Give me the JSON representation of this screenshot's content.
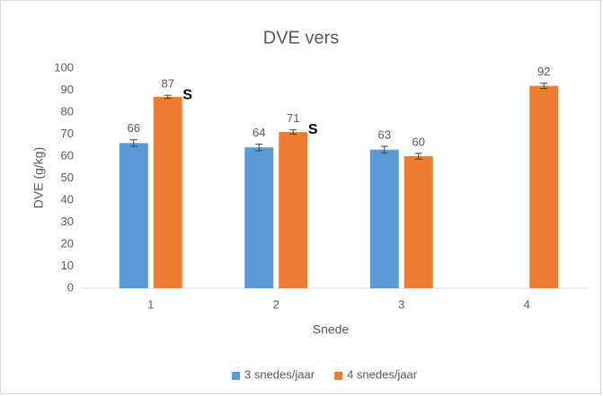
{
  "chart_data": {
    "type": "bar",
    "title": "DVE vers",
    "x_label": "Snede",
    "y_label": "DVE (g/kg)",
    "categories": [
      "1",
      "2",
      "3",
      "4"
    ],
    "series": [
      {
        "name": "3 snedes/jaar",
        "color": "#5b9bd5",
        "values": [
          66,
          64,
          63,
          null
        ],
        "errors": [
          1.5,
          1.5,
          1.5,
          null
        ]
      },
      {
        "name": "4 snedes/jaar",
        "color": "#ed7d31",
        "values": [
          87,
          71,
          60,
          92
        ],
        "errors": [
          0.7,
          1.0,
          1.3,
          1.2
        ]
      }
    ],
    "annotations": [
      "S",
      "S"
    ],
    "ylim": [
      0,
      100
    ],
    "yticks": [
      0,
      10,
      20,
      30,
      40,
      50,
      60,
      70,
      80,
      90,
      100
    ],
    "grid": false,
    "legend": "bottom"
  }
}
